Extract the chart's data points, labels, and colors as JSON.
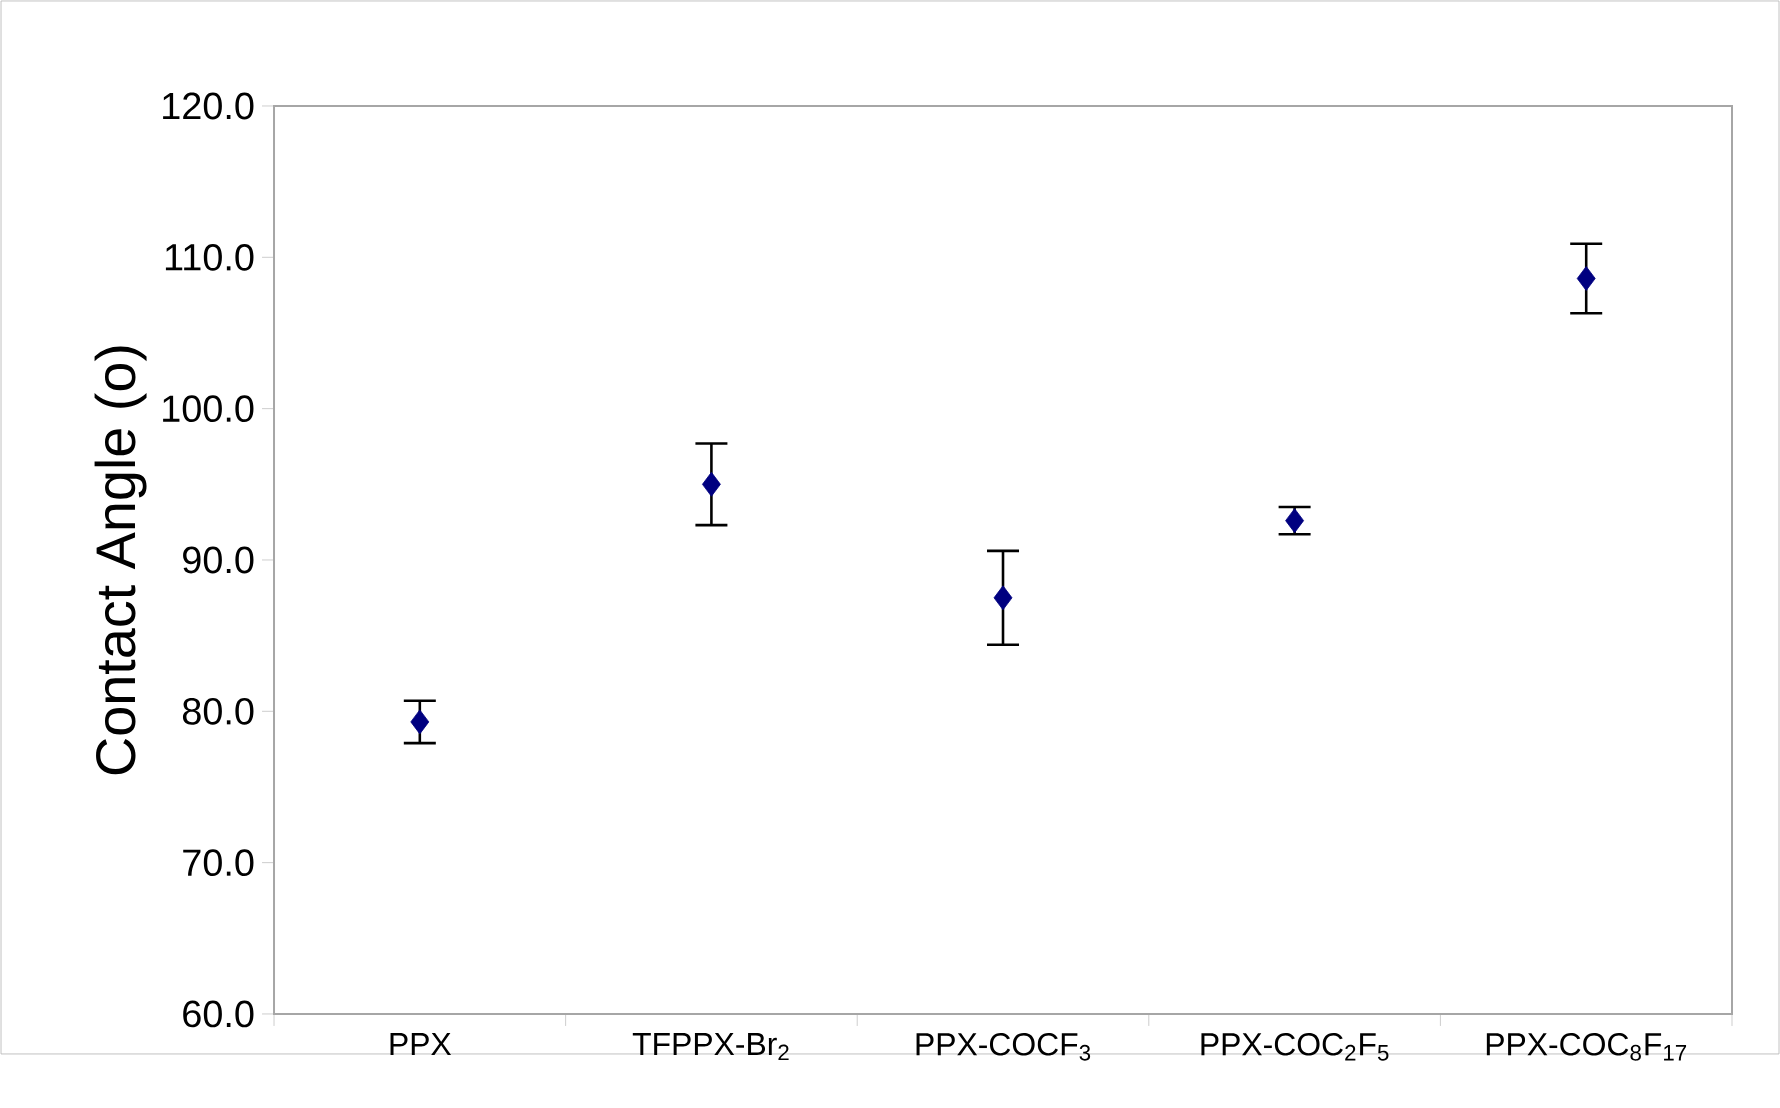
{
  "chart_data": {
    "type": "scatter",
    "ylabel": "Contact Angle (o)",
    "categories": [
      "PPX",
      "TFPPX-Br$_{2}$",
      "PPX-COCF$_{3}$",
      "PPX-COC$_{2}$F$_{5}$",
      "PPX-COC$_{8}$F$_{17}$"
    ],
    "values": [
      79.3,
      95.0,
      87.5,
      92.6,
      108.6
    ],
    "errors": [
      1.4,
      2.7,
      3.1,
      0.9,
      2.3
    ],
    "color": "#000080",
    "marker": "diamond",
    "ylim": [
      60,
      120
    ],
    "yticks": [
      {
        "value": 60,
        "label": "60.0"
      },
      {
        "value": 70,
        "label": "70.0"
      },
      {
        "value": 80,
        "label": "80.0"
      },
      {
        "value": 90,
        "label": "90.0"
      },
      {
        "value": 100,
        "label": "100.0"
      },
      {
        "value": 110,
        "label": "110.0"
      },
      {
        "value": 120,
        "label": "120.0"
      }
    ],
    "grid": false
  }
}
